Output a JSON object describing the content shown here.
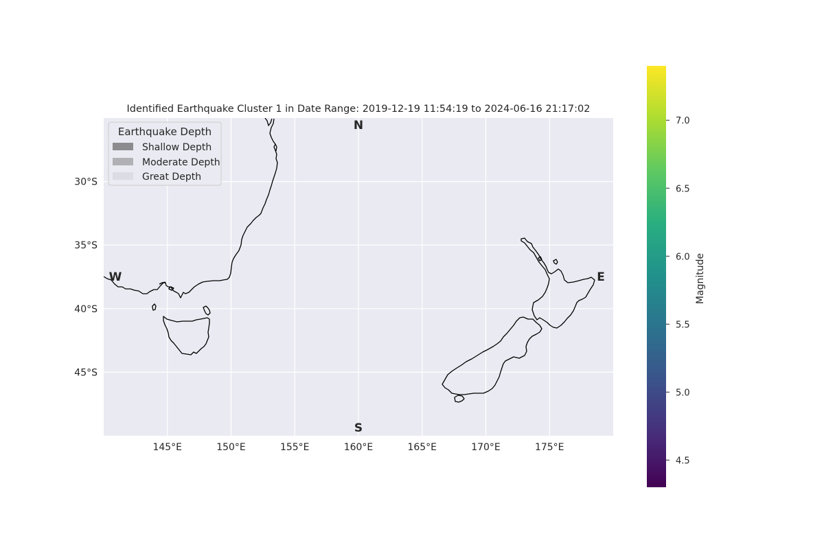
{
  "title": "Identified Earthquake Cluster 1 in Date Range: 2019-12-19 11:54:19 to 2024-06-16 21:17:02",
  "map": {
    "extent": {
      "lon": [
        140,
        180
      ],
      "lat": [
        -50,
        -25
      ]
    },
    "background_color": "#eaeaf2",
    "grid": true,
    "x_ticks": [
      {
        "value": 145,
        "label": "145°E"
      },
      {
        "value": 150,
        "label": "150°E"
      },
      {
        "value": 155,
        "label": "155°E"
      },
      {
        "value": 160,
        "label": "160°E"
      },
      {
        "value": 165,
        "label": "165°E"
      },
      {
        "value": 170,
        "label": "170°E"
      },
      {
        "value": 175,
        "label": "175°E"
      }
    ],
    "y_ticks": [
      {
        "value": -30,
        "label": "30°S"
      },
      {
        "value": -35,
        "label": "35°S"
      },
      {
        "value": -40,
        "label": "40°S"
      },
      {
        "value": -45,
        "label": "45°S"
      }
    ],
    "compass": {
      "n": "N",
      "s": "S",
      "w": "W",
      "e": "E"
    },
    "coastlines": [
      "Australia (southeast coast)",
      "Tasmania",
      "New Zealand"
    ]
  },
  "legend": {
    "title": "Earthquake Depth",
    "placement": "top-left",
    "items": [
      {
        "label": "Shallow Depth",
        "color": "#8c8c8e"
      },
      {
        "label": "Moderate Depth",
        "color": "#b1b1b5"
      },
      {
        "label": "Great Depth",
        "color": "#dcdce4"
      }
    ]
  },
  "colorbar": {
    "label": "Magnitude",
    "colormap": "viridis",
    "range": [
      4.3,
      7.4
    ],
    "ticks": [
      {
        "value": 4.5,
        "label": "4.5"
      },
      {
        "value": 5.0,
        "label": "5.0"
      },
      {
        "value": 5.5,
        "label": "5.5"
      },
      {
        "value": 6.0,
        "label": "6.0"
      },
      {
        "value": 6.5,
        "label": "6.5"
      },
      {
        "value": 7.0,
        "label": "7.0"
      }
    ]
  }
}
